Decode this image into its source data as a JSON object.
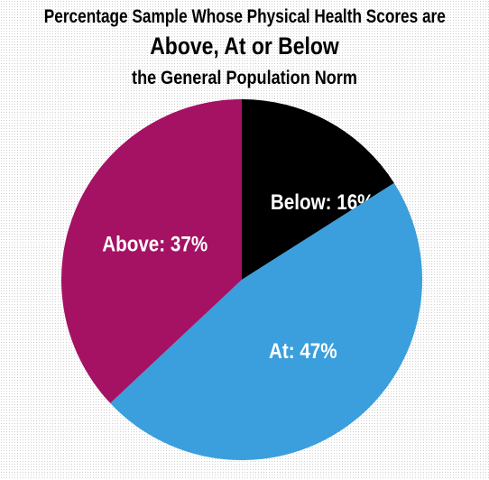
{
  "title": {
    "line1": "Percentage Sample Whose Physical Health Scores are",
    "line2": "Above, At or Below",
    "line3": "the General Population Norm"
  },
  "chart_data": {
    "type": "pie",
    "title": "Percentage Sample Whose Physical Health Scores are Above, At or Below the General Population Norm",
    "slices": [
      {
        "label": "Below: 16%",
        "name": "Below",
        "value": 16,
        "color": "#000000"
      },
      {
        "label": "At: 47%",
        "name": "At",
        "value": 47,
        "color": "#3a9fdc"
      },
      {
        "label": "Above: 37%",
        "name": "Above",
        "value": 37,
        "color": "#a51264"
      }
    ],
    "start": "12 o'clock",
    "direction": "clockwise"
  }
}
